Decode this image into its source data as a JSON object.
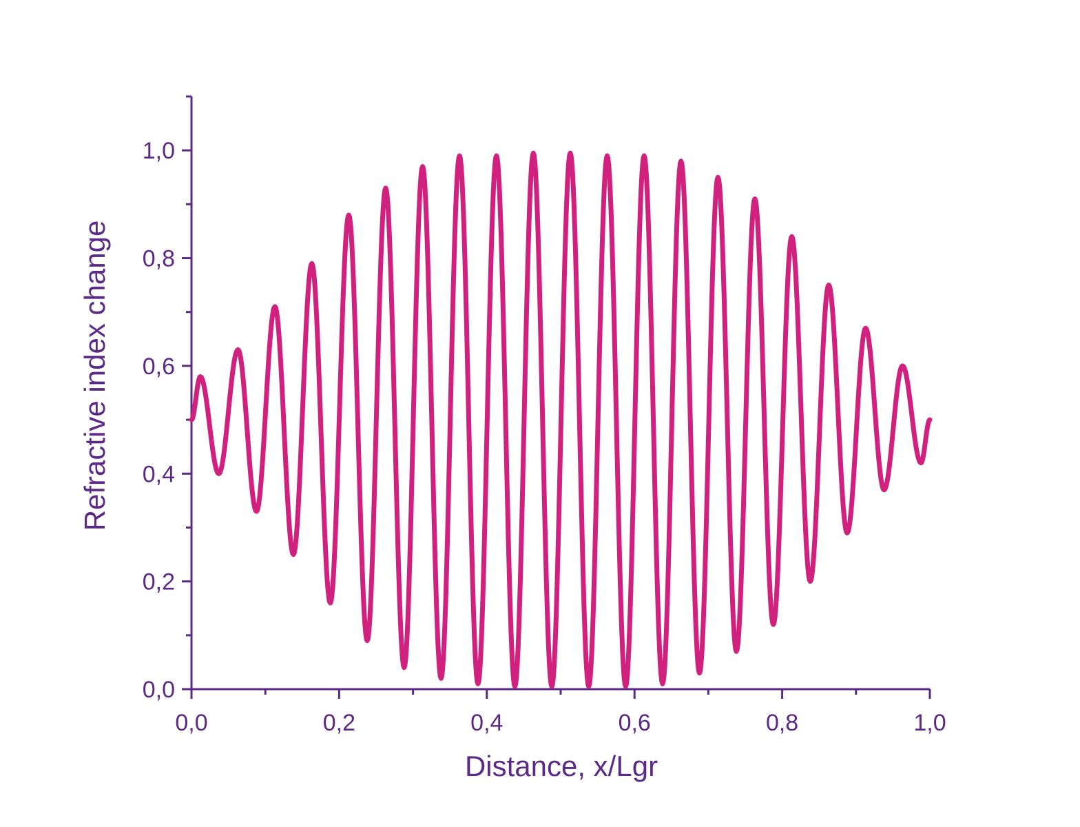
{
  "chart_data": {
    "type": "line",
    "title": "",
    "xlabel": "Distance, x/Lgr",
    "ylabel": "Refractive index change",
    "xlim": [
      0.0,
      1.0
    ],
    "ylim": [
      0.0,
      1.1
    ],
    "xticks": [
      "0,0",
      "0,2",
      "0,4",
      "0,6",
      "0,8",
      "1,0"
    ],
    "yticks": [
      "0,0",
      "0,2",
      "0,4",
      "0,6",
      "0,8",
      "1,0"
    ],
    "grid": false,
    "legend": "none",
    "colors": {
      "axis": "#5b2a86",
      "line": "#d0217f"
    },
    "series": [
      {
        "x": [
          0.0,
          0.012,
          0.037,
          0.063,
          0.088,
          0.113,
          0.138,
          0.163,
          0.188,
          0.213,
          0.238,
          0.263,
          0.288,
          0.313,
          0.338,
          0.363,
          0.388,
          0.413,
          0.438,
          0.463,
          0.488,
          0.513,
          0.538,
          0.563,
          0.588,
          0.613,
          0.638,
          0.663,
          0.688,
          0.713,
          0.738,
          0.763,
          0.788,
          0.813,
          0.838,
          0.863,
          0.888,
          0.913,
          0.938,
          0.963,
          0.988,
          1.0
        ],
        "y": [
          0.5,
          0.58,
          0.4,
          0.63,
          0.33,
          0.71,
          0.25,
          0.79,
          0.16,
          0.88,
          0.09,
          0.93,
          0.04,
          0.97,
          0.02,
          0.99,
          0.01,
          0.99,
          0.005,
          0.995,
          0.005,
          0.995,
          0.005,
          0.99,
          0.005,
          0.99,
          0.01,
          0.98,
          0.03,
          0.95,
          0.07,
          0.91,
          0.12,
          0.84,
          0.2,
          0.75,
          0.29,
          0.67,
          0.37,
          0.6,
          0.42,
          0.5
        ]
      }
    ]
  }
}
